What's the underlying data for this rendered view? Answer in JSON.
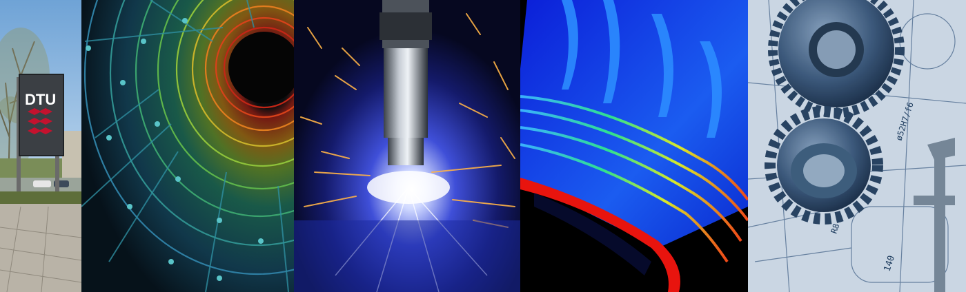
{
  "panels": [
    {
      "name": "campus-sign",
      "sign_text": "DTU"
    },
    {
      "name": "nanotube"
    },
    {
      "name": "welding-sparks"
    },
    {
      "name": "turbine-simulation"
    },
    {
      "name": "gears-drawing",
      "drawing_labels": [
        "ø52H7/f6",
        "140",
        "R8"
      ]
    }
  ]
}
